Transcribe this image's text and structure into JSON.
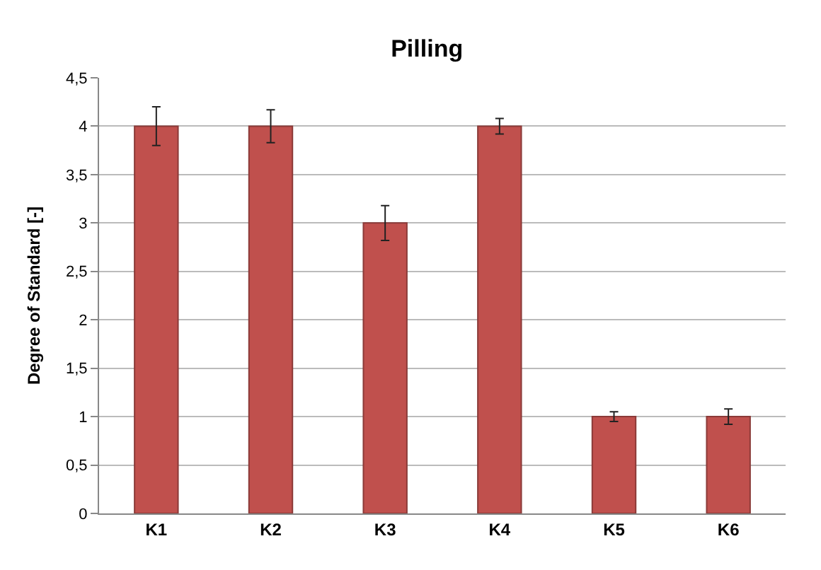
{
  "chart_data": {
    "type": "bar",
    "title": "Pilling",
    "ylabel": "Degree of Standard [-]",
    "categories": [
      "K1",
      "K2",
      "K3",
      "K4",
      "K5",
      "K6"
    ],
    "values": [
      4,
      4,
      3,
      4,
      1,
      1
    ],
    "errors": [
      0.2,
      0.17,
      0.18,
      0.08,
      0.05,
      0.08
    ],
    "color": "#c0504d",
    "ylim": [
      0,
      4.5
    ],
    "yticks": [
      0,
      {
        "value": 0.5,
        "label": "0,5"
      },
      1,
      {
        "value": 1.5,
        "label": "1,5"
      },
      2,
      {
        "value": 2.5,
        "label": "2,5"
      },
      3,
      {
        "value": 3.5,
        "label": "3,5"
      },
      4,
      {
        "value": 4.5,
        "label": "4,5"
      }
    ],
    "grid": "y"
  }
}
